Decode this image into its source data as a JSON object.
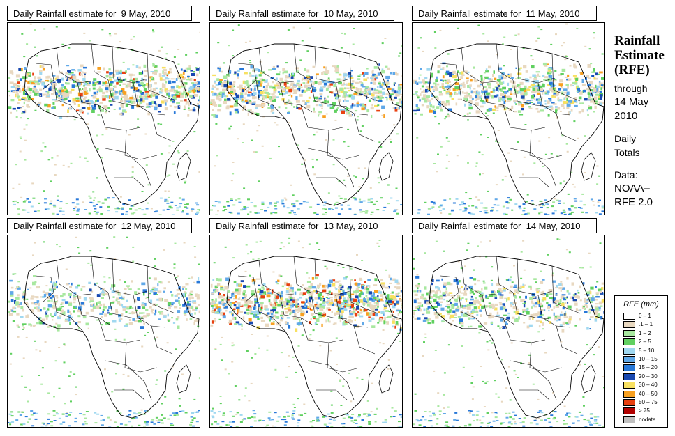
{
  "panels": [
    {
      "title": "Daily Rainfall estimate for  9 May, 2010",
      "intensity": 0.8
    },
    {
      "title": "Daily Rainfall estimate for  10 May, 2010",
      "intensity": 0.75
    },
    {
      "title": "Daily Rainfall estimate for  11 May, 2010",
      "intensity": 0.7
    },
    {
      "title": "Daily Rainfall estimate for  12 May, 2010",
      "intensity": 0.45
    },
    {
      "title": "Daily Rainfall estimate for  13 May, 2010",
      "intensity": 0.9
    },
    {
      "title": "Daily Rainfall estimate for  14 May, 2010",
      "intensity": 0.6
    }
  ],
  "side": {
    "title_line1": "Rainfall",
    "title_line2": "Estimate",
    "title_line3": "(RFE)",
    "through": "through",
    "date_line1": "14 May",
    "date_line2": "2010",
    "daily": "Daily",
    "totals": "Totals",
    "data_label": "Data:",
    "source_line1": "NOAA–",
    "source_line2": "RFE 2.0"
  },
  "legend": {
    "title": "RFE (mm)",
    "items": [
      {
        "label": "0 – 1",
        "color": "#ffffff"
      },
      {
        "label": ".1 – 1",
        "color": "#e8d8c0"
      },
      {
        "label": "1 – 2",
        "color": "#a8e8a0"
      },
      {
        "label": "2 – 5",
        "color": "#60d060"
      },
      {
        "label": "5 – 10",
        "color": "#a0d8f0"
      },
      {
        "label": "10 – 15",
        "color": "#60a8e8"
      },
      {
        "label": "15 – 20",
        "color": "#2878d8"
      },
      {
        "label": "20 – 30",
        "color": "#1848b0"
      },
      {
        "label": "30 – 40",
        "color": "#f8e060"
      },
      {
        "label": "40 – 50",
        "color": "#f8a020"
      },
      {
        "label": "50 – 75",
        "color": "#e84010"
      },
      {
        "label": "> 75",
        "color": "#b00000"
      },
      {
        "label": "nodata",
        "color": "#c0c0c0"
      }
    ]
  }
}
